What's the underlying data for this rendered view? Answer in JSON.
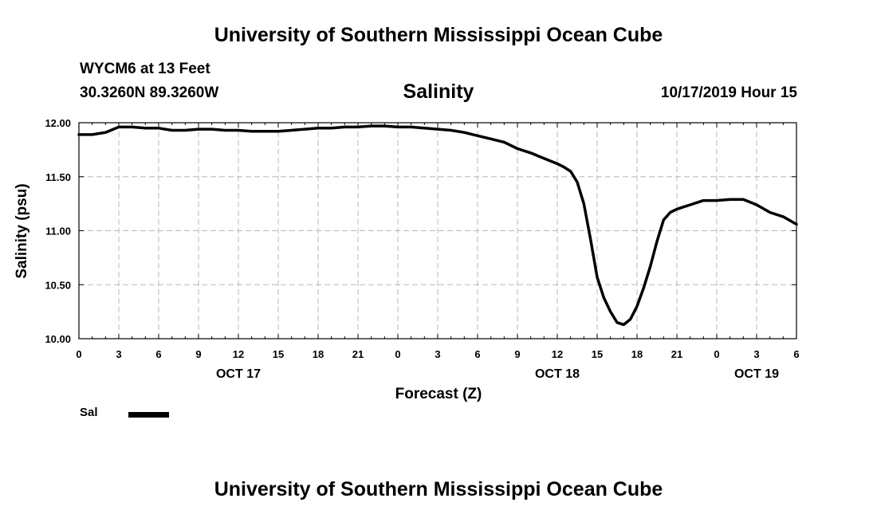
{
  "header": {
    "title": "University of Southern Mississippi Ocean Cube",
    "station": "WYCM6 at 13 Feet",
    "coords": "30.3260N 89.3260W",
    "date": "10/17/2019 Hour 15"
  },
  "footer": {
    "title": "University of Southern Mississippi Ocean Cube"
  },
  "chart_data": {
    "type": "line",
    "title": "Salinity",
    "xlabel": "Forecast (Z)",
    "ylabel": "Salinity (psu)",
    "xlim": [
      0,
      54
    ],
    "ylim": [
      10.0,
      12.0
    ],
    "yticks": [
      10.0,
      10.5,
      11.0,
      11.5,
      12.0
    ],
    "ytick_labels": [
      "10.00",
      "10.50",
      "11.00",
      "11.50",
      "12.00"
    ],
    "x_ticks": [
      0,
      3,
      6,
      9,
      12,
      15,
      18,
      21,
      24,
      27,
      30,
      33,
      36,
      39,
      42,
      45,
      48,
      51,
      54
    ],
    "x_tick_labels": [
      "0",
      "3",
      "6",
      "9",
      "12",
      "15",
      "18",
      "21",
      "0",
      "3",
      "6",
      "9",
      "12",
      "15",
      "18",
      "21",
      "0",
      "3",
      "6"
    ],
    "date_labels": [
      {
        "x": 12,
        "label": "OCT 17"
      },
      {
        "x": 36,
        "label": "OCT 18"
      },
      {
        "x": 51,
        "label": "OCT 19"
      }
    ],
    "grid": true,
    "legend": "bottom-left",
    "series": [
      {
        "name": "Sal",
        "color": "#000000",
        "x": [
          0,
          1,
          2,
          3,
          4,
          5,
          6,
          7,
          8,
          9,
          10,
          11,
          12,
          13,
          14,
          15,
          16,
          17,
          18,
          19,
          20,
          21,
          22,
          23,
          24,
          25,
          26,
          27,
          28,
          29,
          30,
          31,
          32,
          33,
          34,
          35,
          36,
          36.5,
          37,
          37.5,
          38,
          38.5,
          39,
          39.5,
          40,
          40.5,
          41,
          41.5,
          42,
          42.5,
          43,
          43.5,
          44,
          44.5,
          45,
          45.5,
          46,
          47,
          48,
          49,
          50,
          51,
          52,
          53,
          54
        ],
        "values": [
          11.89,
          11.89,
          11.91,
          11.96,
          11.96,
          11.95,
          11.95,
          11.93,
          11.93,
          11.94,
          11.94,
          11.93,
          11.93,
          11.92,
          11.92,
          11.92,
          11.93,
          11.94,
          11.95,
          11.95,
          11.96,
          11.96,
          11.97,
          11.97,
          11.96,
          11.96,
          11.95,
          11.94,
          11.93,
          11.91,
          11.88,
          11.85,
          11.82,
          11.76,
          11.72,
          11.67,
          11.62,
          11.59,
          11.55,
          11.45,
          11.25,
          10.92,
          10.57,
          10.38,
          10.25,
          10.15,
          10.13,
          10.18,
          10.3,
          10.47,
          10.67,
          10.9,
          11.1,
          11.17,
          11.2,
          11.22,
          11.24,
          11.28,
          11.28,
          11.29,
          11.29,
          11.24,
          11.17,
          11.13,
          11.06
        ]
      }
    ]
  }
}
